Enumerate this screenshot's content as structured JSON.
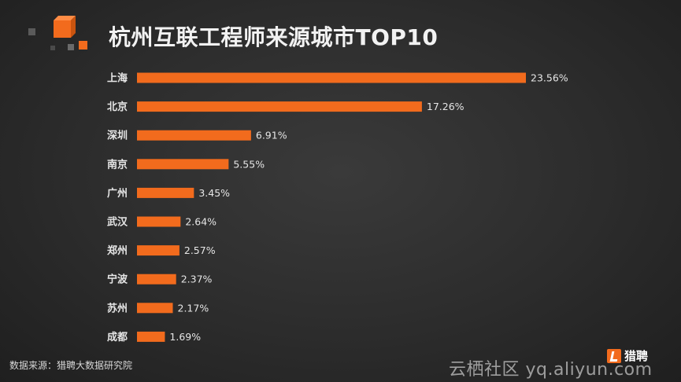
{
  "title": "杭州互联工程师来源城市TOP10",
  "source_text": "数据来源：猎聘大数据研究院",
  "brand_text": "猎聘",
  "watermark_text": "云栖社区 yq.aliyun.com",
  "colors": {
    "bar": "#f26b1d",
    "text": "#e6e6e6",
    "title": "#f2f2f2"
  },
  "icons": [
    "cube-logo-icon",
    "liepin-logo-icon"
  ],
  "chart_data": {
    "type": "bar",
    "orientation": "horizontal",
    "title": "杭州互联工程师来源城市TOP10",
    "categories": [
      "上海",
      "北京",
      "深圳",
      "南京",
      "广州",
      "武汉",
      "郑州",
      "宁波",
      "苏州",
      "成都"
    ],
    "values": [
      23.56,
      17.26,
      6.91,
      5.55,
      3.45,
      2.64,
      2.57,
      2.37,
      2.17,
      1.69
    ],
    "labels": [
      "23.56%",
      "17.26%",
      "6.91%",
      "5.55%",
      "3.45%",
      "2.64%",
      "2.57%",
      "2.37%",
      "2.17%",
      "1.69%"
    ],
    "unit": "%",
    "xlim": [
      0,
      23.56
    ],
    "grid": false,
    "legend": "none"
  }
}
